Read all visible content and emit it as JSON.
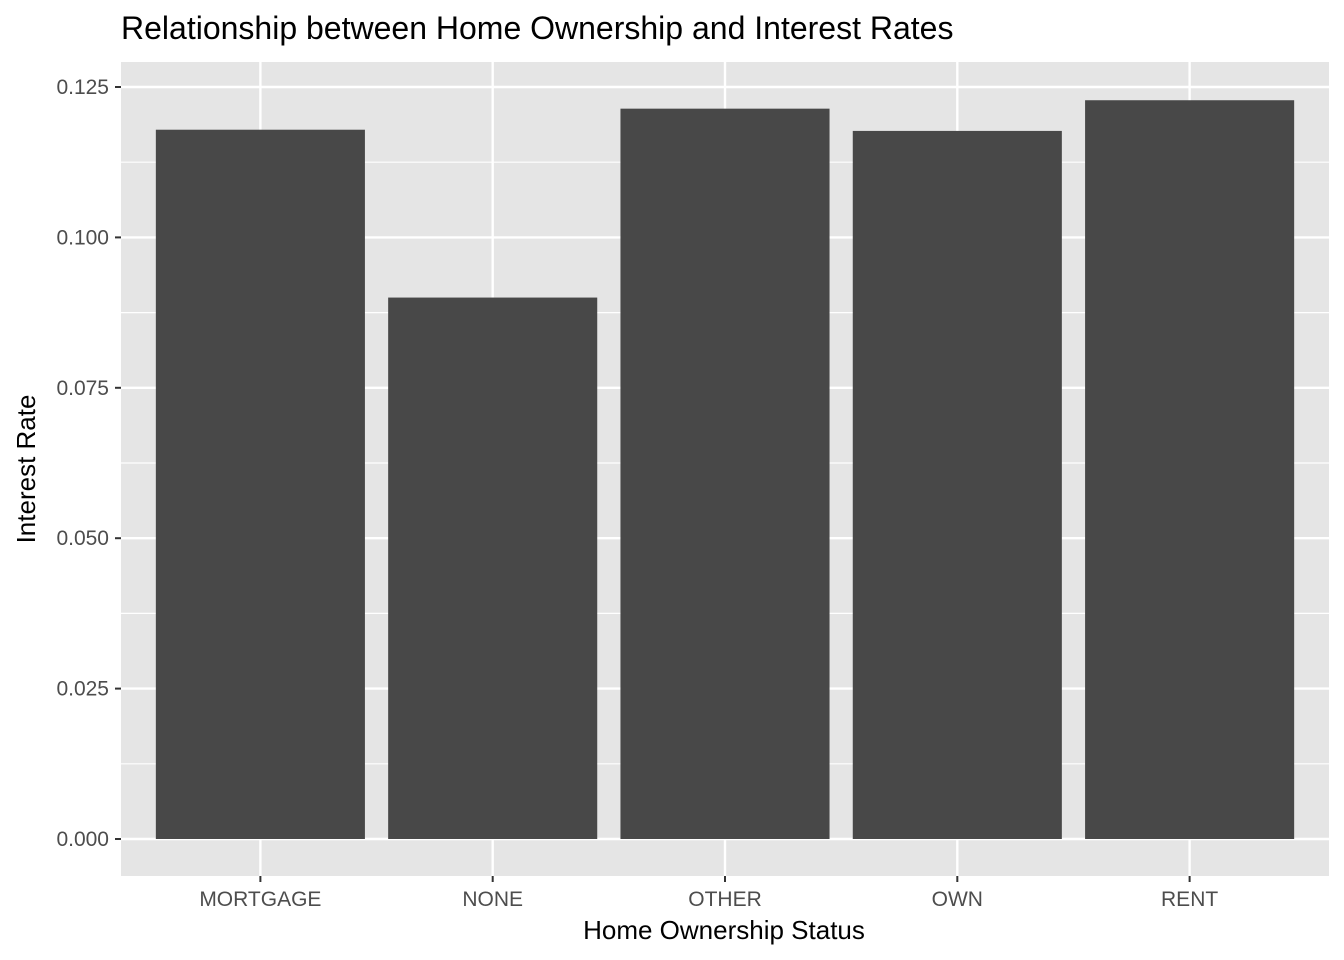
{
  "chart_data": {
    "type": "bar",
    "title": "Relationship between Home Ownership and Interest Rates",
    "xlabel": "Home Ownership Status",
    "ylabel": "Interest Rate",
    "categories": [
      "MORTGAGE",
      "NONE",
      "OTHER",
      "OWN",
      "RENT"
    ],
    "values": [
      0.1179,
      0.09,
      0.1214,
      0.1177,
      0.1228
    ],
    "ylim": [
      0,
      0.125
    ],
    "yticks": [
      0.0,
      0.025,
      0.05,
      0.075,
      0.1,
      0.125
    ],
    "ytick_labels": [
      "0.000",
      "0.025",
      "0.050",
      "0.075",
      "0.100",
      "0.125"
    ],
    "grid": true,
    "legend": "none",
    "colors": {
      "panel_background": "#e5e5e5",
      "grid_line": "#ffffff",
      "bar_fill": "#484848",
      "tick_mark": "#333333",
      "tick_text": "#4d4d4d"
    }
  }
}
